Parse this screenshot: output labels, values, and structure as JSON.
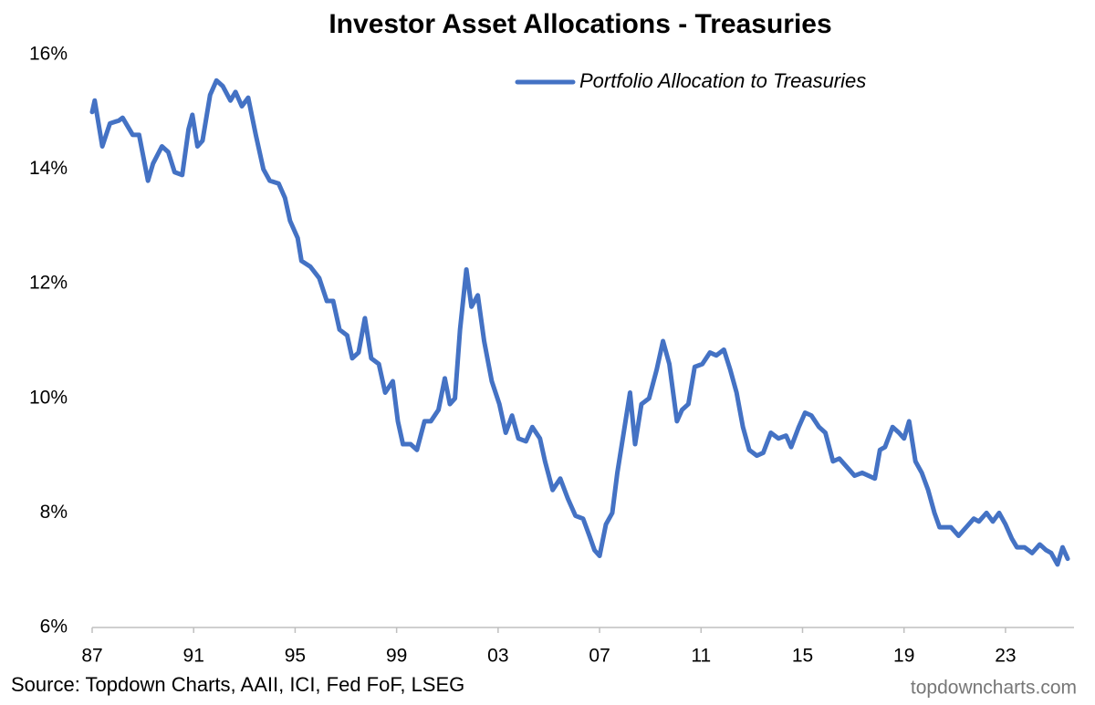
{
  "chart_data": {
    "type": "line",
    "title": "Investor Asset Allocations - Treasuries",
    "source": "Source: Topdown Charts, AAII, ICI, Fed FoF, LSEG",
    "watermark": "topdowncharts.com",
    "legend": "top-right",
    "grid": false,
    "xlim": [
      1987,
      2025.7
    ],
    "xticks": [
      {
        "value": 1987,
        "label": "87"
      },
      {
        "value": 1991,
        "label": "91"
      },
      {
        "value": 1995,
        "label": "95"
      },
      {
        "value": 1999,
        "label": "99"
      },
      {
        "value": 2003,
        "label": "03"
      },
      {
        "value": 2007,
        "label": "07"
      },
      {
        "value": 2011,
        "label": "11"
      },
      {
        "value": 2015,
        "label": "15"
      },
      {
        "value": 2019,
        "label": "19"
      },
      {
        "value": 2023,
        "label": "23"
      }
    ],
    "ylim": [
      6,
      16
    ],
    "yticks": [
      {
        "value": 6,
        "label": "6%"
      },
      {
        "value": 8,
        "label": "8%"
      },
      {
        "value": 10,
        "label": "10%"
      },
      {
        "value": 12,
        "label": "12%"
      },
      {
        "value": 14,
        "label": "14%"
      },
      {
        "value": 16,
        "label": "16%"
      }
    ],
    "x": [
      1987.0,
      1987.1,
      1987.4,
      1987.7,
      1988.05,
      1988.2,
      1988.6,
      1988.85,
      1989.2,
      1989.4,
      1989.75,
      1990.0,
      1990.25,
      1990.55,
      1990.8,
      1990.95,
      1991.15,
      1991.35,
      1991.65,
      1991.9,
      1992.15,
      1992.45,
      1992.65,
      1992.9,
      1993.15,
      1993.45,
      1993.75,
      1994.0,
      1994.35,
      1994.6,
      1994.8,
      1995.1,
      1995.25,
      1995.6,
      1995.95,
      1996.25,
      1996.5,
      1996.75,
      1997.05,
      1997.25,
      1997.5,
      1997.75,
      1998.0,
      1998.3,
      1998.55,
      1998.85,
      1999.05,
      1999.25,
      1999.55,
      1999.8,
      2000.1,
      2000.35,
      2000.65,
      2000.9,
      2001.1,
      2001.3,
      2001.5,
      2001.75,
      2001.95,
      2002.2,
      2002.45,
      2002.75,
      2003.05,
      2003.3,
      2003.55,
      2003.8,
      2004.1,
      2004.35,
      2004.65,
      2004.85,
      2005.15,
      2005.45,
      2005.75,
      2006.05,
      2006.35,
      2006.6,
      2006.8,
      2007.0,
      2007.25,
      2007.5,
      2007.7,
      2007.95,
      2008.2,
      2008.4,
      2008.65,
      2008.95,
      2009.25,
      2009.5,
      2009.75,
      2010.05,
      2010.25,
      2010.5,
      2010.75,
      2011.05,
      2011.35,
      2011.6,
      2011.9,
      2012.15,
      2012.4,
      2012.65,
      2012.9,
      2013.2,
      2013.45,
      2013.75,
      2014.05,
      2014.35,
      2014.55,
      2014.85,
      2015.1,
      2015.35,
      2015.65,
      2015.9,
      2016.2,
      2016.45,
      2016.75,
      2017.05,
      2017.35,
      2017.6,
      2017.85,
      2018.05,
      2018.25,
      2018.55,
      2018.8,
      2019.0,
      2019.2,
      2019.45,
      2019.7,
      2019.95,
      2020.2,
      2020.4,
      2020.65,
      2020.85,
      2021.15,
      2021.45,
      2021.75,
      2021.95,
      2022.25,
      2022.5,
      2022.75,
      2023.0,
      2023.25,
      2023.45,
      2023.75,
      2024.05,
      2024.35,
      2024.6,
      2024.8,
      2025.05,
      2025.25,
      2025.45
    ],
    "series": [
      {
        "name": "Portfolio Allocation to Treasuries",
        "color": "#4472c4",
        "values": [
          15.0,
          15.2,
          14.4,
          14.8,
          14.85,
          14.9,
          14.6,
          14.6,
          13.8,
          14.1,
          14.4,
          14.3,
          13.95,
          13.9,
          14.7,
          14.95,
          14.4,
          14.5,
          15.3,
          15.55,
          15.45,
          15.2,
          15.35,
          15.1,
          15.25,
          14.6,
          14.0,
          13.8,
          13.75,
          13.5,
          13.1,
          12.8,
          12.4,
          12.3,
          12.1,
          11.7,
          11.7,
          11.2,
          11.1,
          10.7,
          10.8,
          11.4,
          10.7,
          10.6,
          10.1,
          10.3,
          9.6,
          9.2,
          9.2,
          9.1,
          9.6,
          9.6,
          9.8,
          10.35,
          9.9,
          10.0,
          11.2,
          12.25,
          11.6,
          11.8,
          11.0,
          10.3,
          9.9,
          9.4,
          9.7,
          9.3,
          9.25,
          9.5,
          9.3,
          8.9,
          8.4,
          8.6,
          8.25,
          7.95,
          7.9,
          7.6,
          7.35,
          7.25,
          7.8,
          8.0,
          8.7,
          9.4,
          10.1,
          9.2,
          9.9,
          10.0,
          10.5,
          11.0,
          10.6,
          9.6,
          9.8,
          9.9,
          10.55,
          10.6,
          10.8,
          10.75,
          10.85,
          10.5,
          10.1,
          9.5,
          9.1,
          9.0,
          9.05,
          9.4,
          9.3,
          9.35,
          9.15,
          9.5,
          9.75,
          9.7,
          9.5,
          9.4,
          8.9,
          8.95,
          8.8,
          8.65,
          8.7,
          8.65,
          8.6,
          9.1,
          9.15,
          9.5,
          9.4,
          9.3,
          9.6,
          8.9,
          8.7,
          8.4,
          8.0,
          7.75,
          7.75,
          7.75,
          7.6,
          7.75,
          7.9,
          7.85,
          8.0,
          7.85,
          8.0,
          7.8,
          7.55,
          7.4,
          7.4,
          7.3,
          7.45,
          7.35,
          7.3,
          7.1,
          7.4,
          7.2
        ]
      }
    ]
  }
}
